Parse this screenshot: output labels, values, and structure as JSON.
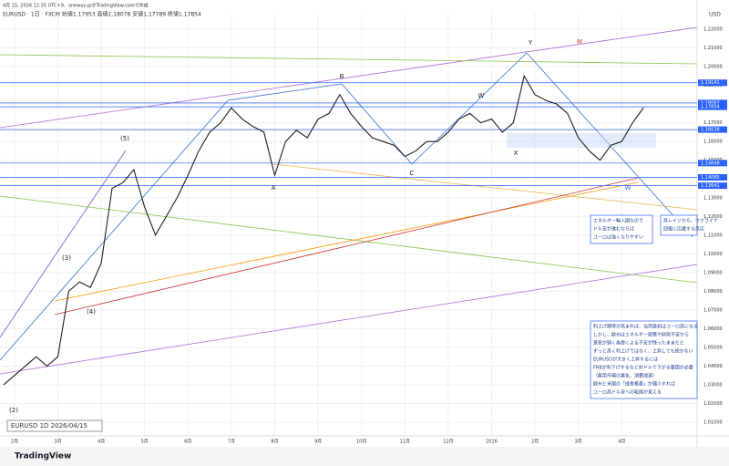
{
  "chart_data": {
    "type": "line",
    "title": "EURUSD · 1日 · FXCM  始値1.17953 高値1.18078 安値1.17789 終値1.17854",
    "subtitle": "4月 15, 2026 12:35 UTC+9、oneway-jpがTradingView.comで作成",
    "currency": "USD",
    "symbol_label": "EURUSD  1D  2026/04/15",
    "brand": "TradingView",
    "categories": [
      null,
      "2月",
      null,
      null,
      null,
      "3月",
      null,
      null,
      null,
      "4月",
      null,
      null,
      null,
      "5月",
      null,
      null,
      null,
      "6月",
      null,
      null,
      null,
      "7月",
      null,
      null,
      null,
      "8月",
      null,
      null,
      null,
      "9月",
      null,
      null,
      null,
      "10月",
      null,
      null,
      null,
      "11月",
      null,
      null,
      null,
      "12月",
      null,
      null,
      null,
      "2026",
      null,
      null,
      null,
      "2月",
      null,
      null,
      null,
      "3月",
      null,
      null,
      null,
      "4月",
      null,
      null
    ],
    "series": [
      {
        "name": "EURUSD",
        "color": "#1f1f1f",
        "values": [
          1.03,
          1.035,
          1.04,
          1.045,
          1.04,
          1.045,
          1.08,
          1.085,
          1.082,
          1.095,
          1.135,
          1.138,
          1.145,
          1.125,
          1.11,
          1.12,
          1.13,
          1.142,
          1.155,
          1.165,
          1.17,
          1.178,
          1.172,
          1.168,
          1.165,
          1.142,
          1.16,
          1.166,
          1.162,
          1.172,
          1.175,
          1.185,
          1.175,
          1.168,
          1.162,
          1.16,
          1.158,
          1.152,
          1.155,
          1.16,
          1.16,
          1.165,
          1.172,
          1.175,
          1.17,
          1.172,
          1.165,
          1.17,
          1.195,
          1.185,
          1.182,
          1.18,
          1.175,
          1.162,
          1.155,
          1.15,
          1.158,
          1.16,
          1.17,
          1.178
        ]
      }
    ],
    "ylim": [
      1.0027,
      1.2288
    ],
    "yticks": [
      {
        "value": 1.01,
        "label": "1.01000"
      },
      {
        "value": 1.02,
        "label": "1.02000"
      },
      {
        "value": 1.03,
        "label": "1.03000"
      },
      {
        "value": 1.04,
        "label": "1.04000"
      },
      {
        "value": 1.05,
        "label": "1.05000"
      },
      {
        "value": 1.06,
        "label": "1.06000"
      },
      {
        "value": 1.07,
        "label": "1.07000"
      },
      {
        "value": 1.08,
        "label": "1.08000"
      },
      {
        "value": 1.09,
        "label": "1.09000"
      },
      {
        "value": 1.1,
        "label": "1.10000"
      },
      {
        "value": 1.11,
        "label": "1.11000"
      },
      {
        "value": 1.12,
        "label": "1.12000"
      },
      {
        "value": 1.13,
        "label": "1.13000"
      },
      {
        "value": 1.14,
        "label": "1.14000"
      },
      {
        "value": 1.15,
        "label": "1.15000"
      },
      {
        "value": 1.16,
        "label": "1.16000"
      },
      {
        "value": 1.17,
        "label": "1.17000"
      },
      {
        "value": 1.18,
        "label": "1.18000"
      },
      {
        "value": 1.19,
        "label": "1.19000"
      },
      {
        "value": 1.2,
        "label": "1.20000"
      },
      {
        "value": 1.21,
        "label": "1.21000"
      },
      {
        "value": 1.22,
        "label": "1.22000"
      }
    ],
    "grid": true,
    "price_markers": [
      1.19141,
      1.18062,
      1.17854,
      1.16638,
      1.14848,
      1.14085,
      1.13641
    ],
    "annotations": [
      "(5)",
      "(3)",
      "(4)",
      "(2)",
      "B",
      "C",
      "X",
      "Y",
      "W",
      "A",
      "W",
      "M"
    ],
    "notes": [
      [
        "エネルギー輸入国なので",
        "ドル安が進むならば",
        "ユーロは強くなりやすい"
      ],
      [
        "高レイジから、ウクライナ",
        "回復に応援する反応"
      ],
      [
        "利上げ期待が高まれば、当然最初はユーロ高になる",
        "しかし、欧州はエネルギー政策や財政不安から",
        "景気が弱く為替による不安が残ったままだと",
        "ずっと高く利上げではなく、上昇しても続かない",
        "EURUSDが大きく上昇するには",
        "FRBが利下げするなど対ドルで下がる要因が必要",
        "（雇用市場の悪化、消費減速）",
        "欧州と米国の「成長格差」が縮小すれば",
        "ユーロ高ドル安への転換が見える"
      ]
    ]
  }
}
